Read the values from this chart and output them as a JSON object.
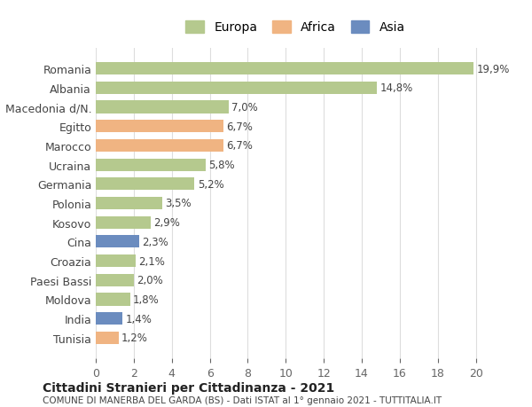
{
  "categories": [
    "Tunisia",
    "India",
    "Moldova",
    "Paesi Bassi",
    "Croazia",
    "Cina",
    "Kosovo",
    "Polonia",
    "Germania",
    "Ucraina",
    "Marocco",
    "Egitto",
    "Macedonia d/N.",
    "Albania",
    "Romania"
  ],
  "values": [
    1.2,
    1.4,
    1.8,
    2.0,
    2.1,
    2.3,
    2.9,
    3.5,
    5.2,
    5.8,
    6.7,
    6.7,
    7.0,
    14.8,
    19.9
  ],
  "labels": [
    "1,2%",
    "1,4%",
    "1,8%",
    "2,0%",
    "2,1%",
    "2,3%",
    "2,9%",
    "3,5%",
    "5,2%",
    "5,8%",
    "6,7%",
    "6,7%",
    "7,0%",
    "14,8%",
    "19,9%"
  ],
  "continents": [
    "Africa",
    "Asia",
    "Europa",
    "Europa",
    "Europa",
    "Asia",
    "Europa",
    "Europa",
    "Europa",
    "Europa",
    "Africa",
    "Africa",
    "Europa",
    "Europa",
    "Europa"
  ],
  "colors": {
    "Europa": "#b5c98e",
    "Africa": "#f0b482",
    "Asia": "#6b8cbf"
  },
  "legend_items": [
    "Europa",
    "Africa",
    "Asia"
  ],
  "xlim": [
    0,
    21
  ],
  "xticks": [
    0,
    2,
    4,
    6,
    8,
    10,
    12,
    14,
    16,
    18,
    20
  ],
  "title1": "Cittadini Stranieri per Cittadinanza - 2021",
  "title2": "COMUNE DI MANERBA DEL GARDA (BS) - Dati ISTAT al 1° gennaio 2021 - TUTTITALIA.IT",
  "bg_color": "#ffffff",
  "grid_color": "#dddddd",
  "bar_height": 0.65
}
